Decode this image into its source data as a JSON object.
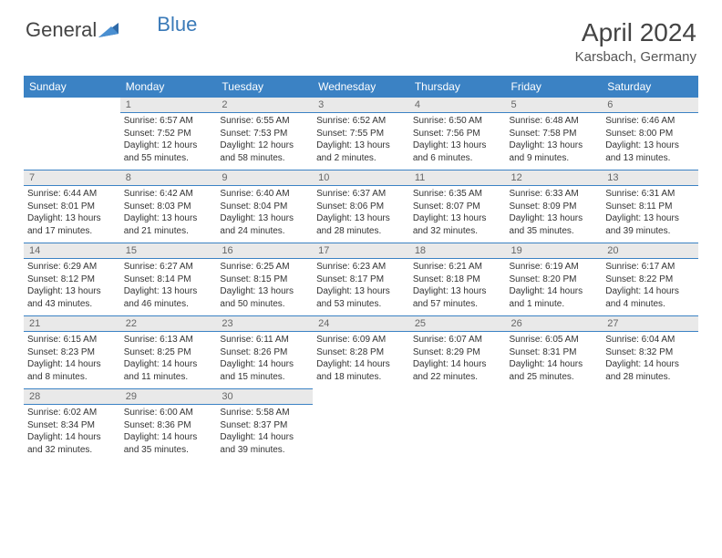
{
  "brand": {
    "name1": "General",
    "name2": "Blue"
  },
  "title": "April 2024",
  "location": "Karsbach, Germany",
  "colors": {
    "header_bg": "#3b82c4",
    "header_text": "#ffffff",
    "day_bg": "#e9e9e9",
    "text": "#333333",
    "rule": "#3b82c4"
  },
  "weekdays": [
    "Sunday",
    "Monday",
    "Tuesday",
    "Wednesday",
    "Thursday",
    "Friday",
    "Saturday"
  ],
  "weeks": [
    [
      null,
      {
        "n": "1",
        "sr": "Sunrise: 6:57 AM",
        "ss": "Sunset: 7:52 PM",
        "d1": "Daylight: 12 hours",
        "d2": "and 55 minutes."
      },
      {
        "n": "2",
        "sr": "Sunrise: 6:55 AM",
        "ss": "Sunset: 7:53 PM",
        "d1": "Daylight: 12 hours",
        "d2": "and 58 minutes."
      },
      {
        "n": "3",
        "sr": "Sunrise: 6:52 AM",
        "ss": "Sunset: 7:55 PM",
        "d1": "Daylight: 13 hours",
        "d2": "and 2 minutes."
      },
      {
        "n": "4",
        "sr": "Sunrise: 6:50 AM",
        "ss": "Sunset: 7:56 PM",
        "d1": "Daylight: 13 hours",
        "d2": "and 6 minutes."
      },
      {
        "n": "5",
        "sr": "Sunrise: 6:48 AM",
        "ss": "Sunset: 7:58 PM",
        "d1": "Daylight: 13 hours",
        "d2": "and 9 minutes."
      },
      {
        "n": "6",
        "sr": "Sunrise: 6:46 AM",
        "ss": "Sunset: 8:00 PM",
        "d1": "Daylight: 13 hours",
        "d2": "and 13 minutes."
      }
    ],
    [
      {
        "n": "7",
        "sr": "Sunrise: 6:44 AM",
        "ss": "Sunset: 8:01 PM",
        "d1": "Daylight: 13 hours",
        "d2": "and 17 minutes."
      },
      {
        "n": "8",
        "sr": "Sunrise: 6:42 AM",
        "ss": "Sunset: 8:03 PM",
        "d1": "Daylight: 13 hours",
        "d2": "and 21 minutes."
      },
      {
        "n": "9",
        "sr": "Sunrise: 6:40 AM",
        "ss": "Sunset: 8:04 PM",
        "d1": "Daylight: 13 hours",
        "d2": "and 24 minutes."
      },
      {
        "n": "10",
        "sr": "Sunrise: 6:37 AM",
        "ss": "Sunset: 8:06 PM",
        "d1": "Daylight: 13 hours",
        "d2": "and 28 minutes."
      },
      {
        "n": "11",
        "sr": "Sunrise: 6:35 AM",
        "ss": "Sunset: 8:07 PM",
        "d1": "Daylight: 13 hours",
        "d2": "and 32 minutes."
      },
      {
        "n": "12",
        "sr": "Sunrise: 6:33 AM",
        "ss": "Sunset: 8:09 PM",
        "d1": "Daylight: 13 hours",
        "d2": "and 35 minutes."
      },
      {
        "n": "13",
        "sr": "Sunrise: 6:31 AM",
        "ss": "Sunset: 8:11 PM",
        "d1": "Daylight: 13 hours",
        "d2": "and 39 minutes."
      }
    ],
    [
      {
        "n": "14",
        "sr": "Sunrise: 6:29 AM",
        "ss": "Sunset: 8:12 PM",
        "d1": "Daylight: 13 hours",
        "d2": "and 43 minutes."
      },
      {
        "n": "15",
        "sr": "Sunrise: 6:27 AM",
        "ss": "Sunset: 8:14 PM",
        "d1": "Daylight: 13 hours",
        "d2": "and 46 minutes."
      },
      {
        "n": "16",
        "sr": "Sunrise: 6:25 AM",
        "ss": "Sunset: 8:15 PM",
        "d1": "Daylight: 13 hours",
        "d2": "and 50 minutes."
      },
      {
        "n": "17",
        "sr": "Sunrise: 6:23 AM",
        "ss": "Sunset: 8:17 PM",
        "d1": "Daylight: 13 hours",
        "d2": "and 53 minutes."
      },
      {
        "n": "18",
        "sr": "Sunrise: 6:21 AM",
        "ss": "Sunset: 8:18 PM",
        "d1": "Daylight: 13 hours",
        "d2": "and 57 minutes."
      },
      {
        "n": "19",
        "sr": "Sunrise: 6:19 AM",
        "ss": "Sunset: 8:20 PM",
        "d1": "Daylight: 14 hours",
        "d2": "and 1 minute."
      },
      {
        "n": "20",
        "sr": "Sunrise: 6:17 AM",
        "ss": "Sunset: 8:22 PM",
        "d1": "Daylight: 14 hours",
        "d2": "and 4 minutes."
      }
    ],
    [
      {
        "n": "21",
        "sr": "Sunrise: 6:15 AM",
        "ss": "Sunset: 8:23 PM",
        "d1": "Daylight: 14 hours",
        "d2": "and 8 minutes."
      },
      {
        "n": "22",
        "sr": "Sunrise: 6:13 AM",
        "ss": "Sunset: 8:25 PM",
        "d1": "Daylight: 14 hours",
        "d2": "and 11 minutes."
      },
      {
        "n": "23",
        "sr": "Sunrise: 6:11 AM",
        "ss": "Sunset: 8:26 PM",
        "d1": "Daylight: 14 hours",
        "d2": "and 15 minutes."
      },
      {
        "n": "24",
        "sr": "Sunrise: 6:09 AM",
        "ss": "Sunset: 8:28 PM",
        "d1": "Daylight: 14 hours",
        "d2": "and 18 minutes."
      },
      {
        "n": "25",
        "sr": "Sunrise: 6:07 AM",
        "ss": "Sunset: 8:29 PM",
        "d1": "Daylight: 14 hours",
        "d2": "and 22 minutes."
      },
      {
        "n": "26",
        "sr": "Sunrise: 6:05 AM",
        "ss": "Sunset: 8:31 PM",
        "d1": "Daylight: 14 hours",
        "d2": "and 25 minutes."
      },
      {
        "n": "27",
        "sr": "Sunrise: 6:04 AM",
        "ss": "Sunset: 8:32 PM",
        "d1": "Daylight: 14 hours",
        "d2": "and 28 minutes."
      }
    ],
    [
      {
        "n": "28",
        "sr": "Sunrise: 6:02 AM",
        "ss": "Sunset: 8:34 PM",
        "d1": "Daylight: 14 hours",
        "d2": "and 32 minutes."
      },
      {
        "n": "29",
        "sr": "Sunrise: 6:00 AM",
        "ss": "Sunset: 8:36 PM",
        "d1": "Daylight: 14 hours",
        "d2": "and 35 minutes."
      },
      {
        "n": "30",
        "sr": "Sunrise: 5:58 AM",
        "ss": "Sunset: 8:37 PM",
        "d1": "Daylight: 14 hours",
        "d2": "and 39 minutes."
      },
      null,
      null,
      null,
      null
    ]
  ]
}
